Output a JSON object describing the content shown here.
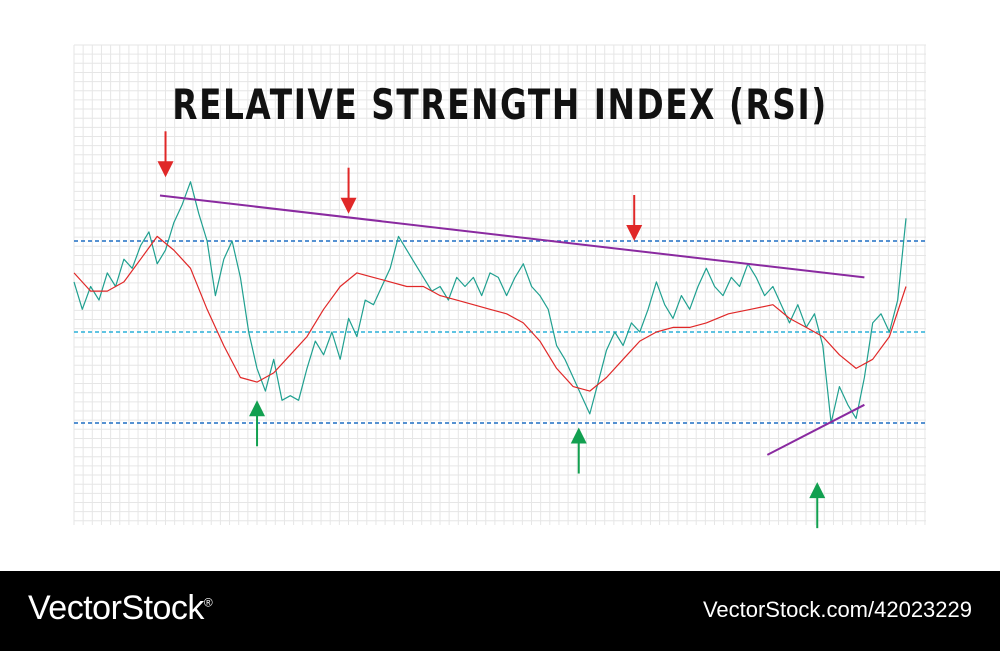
{
  "chart_data": {
    "type": "line",
    "title": "RELATIVE STRENGTH INDEX (RSI)",
    "xlabel": "",
    "ylabel": "",
    "ylim": [
      0,
      100
    ],
    "grid": true,
    "levels": [
      {
        "value": 70,
        "style": "dashed",
        "color": "#1f6fc4"
      },
      {
        "value": 50,
        "style": "dashed",
        "color": "#2ab0d8"
      },
      {
        "value": 30,
        "style": "dashed",
        "color": "#1f6fc4"
      }
    ],
    "series": [
      {
        "color": "#20a090",
        "x": [
          0,
          3,
          6,
          9,
          12,
          15,
          18,
          21,
          24,
          27,
          30,
          33,
          36,
          39,
          42,
          45,
          48,
          51,
          54,
          57,
          60,
          63,
          66,
          69,
          72,
          75,
          78,
          81,
          84,
          87,
          90,
          93,
          96,
          99,
          102,
          105,
          108,
          111,
          114,
          117,
          120,
          123,
          126,
          129,
          132,
          135,
          138,
          141,
          144,
          147,
          150,
          153,
          156,
          159,
          162,
          165,
          168,
          171,
          174,
          177,
          180,
          183,
          186,
          189,
          192,
          195,
          198,
          201,
          204,
          207,
          210,
          213,
          216,
          219,
          222,
          225,
          228,
          231,
          234,
          237,
          240,
          243,
          246,
          249,
          252,
          255,
          258,
          261,
          264,
          267,
          270,
          273,
          276,
          279,
          282,
          285,
          288,
          291,
          294,
          297,
          300
        ],
        "values": [
          61,
          55,
          60,
          57,
          63,
          60,
          66,
          64,
          69,
          72,
          65,
          68,
          74,
          78,
          83,
          76,
          70,
          58,
          66,
          70,
          62,
          50,
          42,
          37,
          44,
          35,
          36,
          35,
          42,
          48,
          45,
          50,
          44,
          53,
          49,
          57,
          56,
          60,
          64,
          71,
          68,
          65,
          62,
          59,
          60,
          57,
          62,
          60,
          62,
          58,
          63,
          62,
          58,
          62,
          65,
          60,
          58,
          55,
          47,
          44,
          40,
          36,
          32,
          39,
          46,
          50,
          47,
          52,
          50,
          55,
          61,
          56,
          53,
          58,
          55,
          60,
          64,
          60,
          58,
          62,
          60,
          65,
          62,
          58,
          60,
          56,
          52,
          56,
          51,
          54,
          47,
          30,
          38,
          34,
          31,
          40,
          52,
          54,
          50,
          57,
          75
        ]
      },
      {
        "color": "#e02828",
        "x": [
          0,
          6,
          12,
          18,
          24,
          30,
          36,
          42,
          48,
          54,
          60,
          66,
          72,
          78,
          84,
          90,
          96,
          102,
          108,
          114,
          120,
          126,
          132,
          138,
          144,
          150,
          156,
          162,
          168,
          174,
          180,
          186,
          192,
          198,
          204,
          210,
          216,
          222,
          228,
          236,
          244,
          252,
          258,
          264,
          270,
          276,
          282,
          288,
          294,
          300
        ],
        "values": [
          63,
          59,
          59,
          61,
          66,
          71,
          68,
          64,
          55,
          47,
          40,
          39,
          41,
          45,
          49,
          55,
          60,
          63,
          62,
          61,
          60,
          60,
          58,
          57,
          56,
          55,
          54,
          52,
          48,
          42,
          38,
          37,
          40,
          44,
          48,
          50,
          51,
          51,
          52,
          54,
          55,
          56,
          53,
          51,
          49,
          45,
          42,
          44,
          49,
          60
        ]
      }
    ],
    "trendlines": [
      {
        "color": "#8a2aa0",
        "points": [
          [
            31,
            80
          ],
          [
            285,
            62
          ]
        ]
      },
      {
        "color": "#8a2aa0",
        "points": [
          [
            250,
            23
          ],
          [
            285,
            34
          ]
        ]
      }
    ],
    "annotations": [
      {
        "type": "arrow-down",
        "color": "#e02828",
        "x": 33,
        "y": 84
      },
      {
        "type": "arrow-down",
        "color": "#e02828",
        "x": 99,
        "y": 76
      },
      {
        "type": "arrow-down",
        "color": "#e02828",
        "x": 202,
        "y": 70
      },
      {
        "type": "arrow-up",
        "color": "#12a050",
        "x": 66,
        "y": 35
      },
      {
        "type": "arrow-up",
        "color": "#12a050",
        "x": 182,
        "y": 29
      },
      {
        "type": "arrow-up",
        "color": "#12a050",
        "x": 268,
        "y": 17
      }
    ]
  },
  "footer": {
    "brand": "VectorStock",
    "brand_mark": "®",
    "ref": "VectorStock.com/42023229"
  }
}
